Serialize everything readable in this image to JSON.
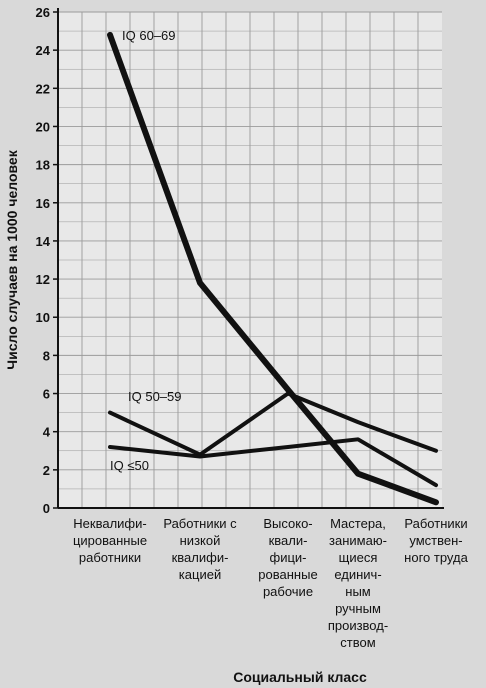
{
  "chart_data": {
    "type": "line",
    "xlabel": "Социальный класс",
    "ylabel": "Число случаев на 1000 человек",
    "ylim": [
      0,
      26
    ],
    "yticks": [
      0,
      2,
      4,
      6,
      8,
      10,
      12,
      14,
      16,
      18,
      20,
      22,
      24,
      26
    ],
    "grid": true,
    "categories": [
      [
        "Неквалифи-",
        "цированные",
        "работники"
      ],
      [
        "Работники с",
        "низкой",
        "квалифи-",
        "кацией"
      ],
      [
        "Высоко-",
        "квали-",
        "фици-",
        "рованные",
        "рабочие"
      ],
      [
        "Мастера,",
        "занимаю-",
        "щиеся",
        "единич-",
        "ным",
        "ручным",
        "производ-",
        "ством"
      ],
      [
        "Работники",
        "умствен-",
        "ного труда"
      ]
    ],
    "series": [
      {
        "name": "IQ 60–69",
        "values": [
          24.8,
          11.8,
          6.2,
          1.8,
          0.3
        ],
        "color": "#111111",
        "width": 6
      },
      {
        "name": "IQ 50–59",
        "values": [
          5.0,
          2.8,
          6.0,
          4.5,
          3.0
        ],
        "color": "#111111",
        "width": 4
      },
      {
        "name": "IQ ≤50",
        "values": [
          3.2,
          2.7,
          3.2,
          3.6,
          1.2
        ],
        "color": "#111111",
        "width": 4
      }
    ]
  }
}
